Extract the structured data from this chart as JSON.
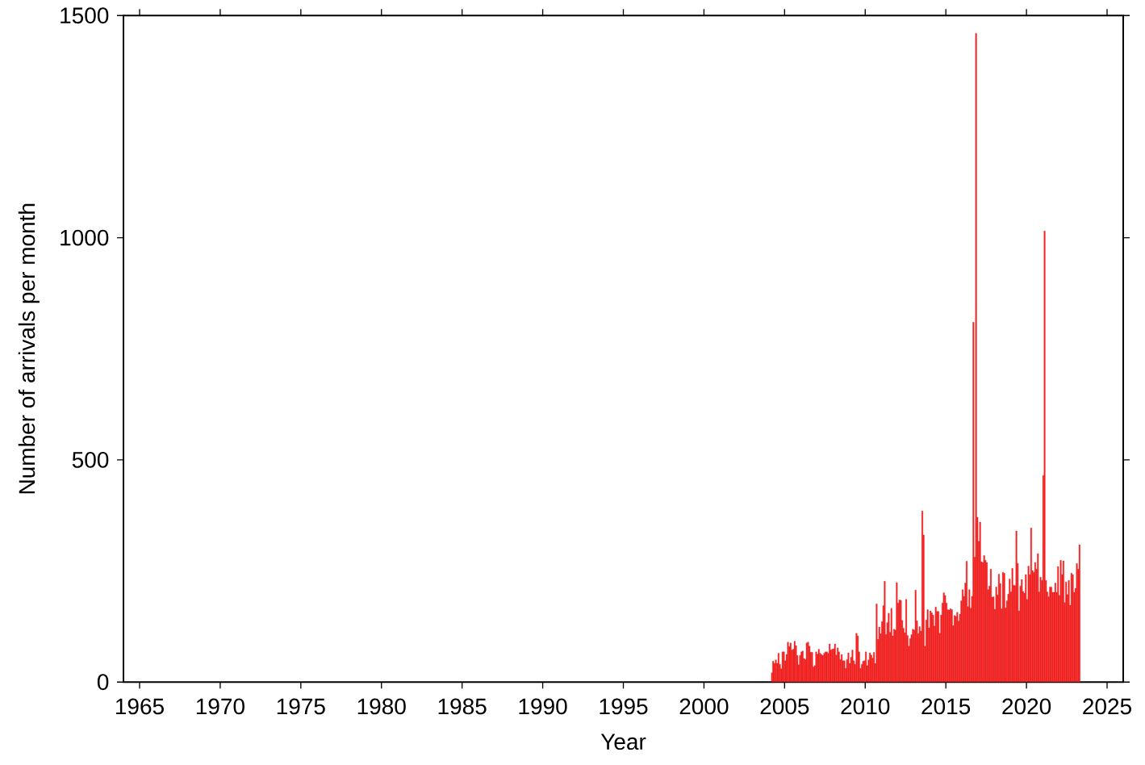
{
  "chart_data": {
    "type": "bar",
    "xlabel": "Year",
    "ylabel": "Number of arrivals per month",
    "color": "#ff2020",
    "xlim": [
      "1964",
      "2026"
    ],
    "xticks": [
      "1965",
      "1970",
      "1975",
      "1980",
      "1985",
      "1990",
      "1995",
      "2000",
      "2005",
      "2010",
      "2015",
      "2020",
      "2025"
    ],
    "ylim": [
      0,
      1500
    ],
    "yticks": [
      0,
      500,
      1000,
      1500
    ],
    "x": [
      "2004-03",
      "2004-04",
      "2004-05",
      "2004-06",
      "2004-07",
      "2004-08",
      "2004-09",
      "2004-10",
      "2004-11",
      "2004-12",
      "2005-01",
      "2005-02",
      "2005-03",
      "2005-04",
      "2005-05",
      "2005-06",
      "2005-07",
      "2005-08",
      "2005-09",
      "2005-10",
      "2005-11",
      "2005-12",
      "2006-01",
      "2006-02",
      "2006-03",
      "2006-04",
      "2006-05",
      "2006-06",
      "2006-07",
      "2006-08",
      "2006-09",
      "2006-10",
      "2006-11",
      "2006-12",
      "2007-01",
      "2007-02",
      "2007-03",
      "2007-04",
      "2007-05",
      "2007-06",
      "2007-07",
      "2007-08",
      "2007-09",
      "2007-10",
      "2007-11",
      "2007-12",
      "2008-01",
      "2008-02",
      "2008-03",
      "2008-04",
      "2008-05",
      "2008-06",
      "2008-07",
      "2008-08",
      "2008-09",
      "2008-10",
      "2008-11",
      "2008-12",
      "2009-01",
      "2009-02",
      "2009-03",
      "2009-04",
      "2009-05",
      "2009-06",
      "2009-07",
      "2009-08",
      "2009-09",
      "2009-10",
      "2009-11",
      "2009-12",
      "2010-01",
      "2010-02",
      "2010-03",
      "2010-04",
      "2010-05",
      "2010-06",
      "2010-07",
      "2010-08",
      "2010-09",
      "2010-10",
      "2010-11",
      "2010-12",
      "2011-01",
      "2011-02",
      "2011-03",
      "2011-04",
      "2011-05",
      "2011-06",
      "2011-07",
      "2011-08",
      "2011-09",
      "2011-10",
      "2011-11",
      "2011-12",
      "2012-01",
      "2012-02",
      "2012-03",
      "2012-04",
      "2012-05",
      "2012-06",
      "2012-07",
      "2012-08",
      "2012-09",
      "2012-10",
      "2012-11",
      "2012-12",
      "2013-01",
      "2013-02",
      "2013-03",
      "2013-04",
      "2013-05",
      "2013-06",
      "2013-07",
      "2013-08",
      "2013-09",
      "2013-10",
      "2013-11",
      "2013-12",
      "2014-01",
      "2014-02",
      "2014-03",
      "2014-04",
      "2014-05",
      "2014-06",
      "2014-07",
      "2014-08",
      "2014-09",
      "2014-10",
      "2014-11",
      "2014-12",
      "2015-01",
      "2015-02",
      "2015-03",
      "2015-04",
      "2015-05",
      "2015-06",
      "2015-07",
      "2015-08",
      "2015-09",
      "2015-10",
      "2015-11",
      "2015-12",
      "2016-01",
      "2016-02",
      "2016-03",
      "2016-04",
      "2016-05",
      "2016-06",
      "2016-07",
      "2016-08",
      "2016-09",
      "2016-10",
      "2016-11",
      "2016-12",
      "2017-01",
      "2017-02",
      "2017-03",
      "2017-04",
      "2017-05",
      "2017-06",
      "2017-07",
      "2017-08",
      "2017-09",
      "2017-10",
      "2017-11",
      "2017-12",
      "2018-01",
      "2018-02",
      "2018-03",
      "2018-04",
      "2018-05",
      "2018-06",
      "2018-07",
      "2018-08",
      "2018-09",
      "2018-10",
      "2018-11",
      "2018-12",
      "2019-01",
      "2019-02",
      "2019-03",
      "2019-04",
      "2019-05",
      "2019-06",
      "2019-07",
      "2019-08",
      "2019-09",
      "2019-10",
      "2019-11",
      "2019-12",
      "2020-01",
      "2020-02",
      "2020-03",
      "2020-04",
      "2020-05",
      "2020-06",
      "2020-07",
      "2020-08",
      "2020-09",
      "2020-10",
      "2020-11",
      "2020-12",
      "2021-01",
      "2021-02",
      "2021-03",
      "2021-04",
      "2021-05",
      "2021-06",
      "2021-07",
      "2021-08",
      "2021-09",
      "2021-10",
      "2021-11",
      "2021-12",
      "2022-01",
      "2022-02",
      "2022-03",
      "2022-04",
      "2022-05",
      "2022-06",
      "2022-07",
      "2022-08",
      "2022-09",
      "2022-10",
      "2022-11",
      "2022-12",
      "2023-01",
      "2023-02",
      "2023-03",
      "2023-04"
    ],
    "values": [
      21,
      47,
      42,
      50,
      42,
      65,
      40,
      30,
      68,
      68,
      48,
      62,
      90,
      80,
      88,
      72,
      74,
      92,
      82,
      60,
      39,
      60,
      68,
      70,
      53,
      51,
      88,
      90,
      81,
      67,
      67,
      34,
      37,
      68,
      63,
      74,
      65,
      62,
      60,
      65,
      68,
      68,
      65,
      86,
      72,
      74,
      75,
      86,
      61,
      77,
      68,
      51,
      62,
      48,
      48,
      31,
      51,
      66,
      42,
      56,
      72,
      48,
      40,
      110,
      104,
      68,
      31,
      40,
      47,
      48,
      68,
      37,
      50,
      66,
      61,
      54,
      67,
      42,
      176,
      96,
      124,
      109,
      136,
      172,
      227,
      107,
      134,
      155,
      112,
      166,
      104,
      119,
      117,
      224,
      178,
      185,
      184,
      139,
      121,
      111,
      186,
      105,
      81,
      98,
      107,
      119,
      117,
      207,
      138,
      109,
      125,
      115,
      385,
      331,
      81,
      140,
      163,
      122,
      160,
      156,
      151,
      126,
      169,
      159,
      159,
      110,
      151,
      178,
      201,
      195,
      178,
      163,
      162,
      165,
      163,
      127,
      150,
      148,
      157,
      137,
      153,
      183,
      208,
      193,
      223,
      272,
      170,
      208,
      166,
      193,
      810,
      281,
      1460,
      371,
      317,
      360,
      271,
      269,
      285,
      274,
      269,
      208,
      216,
      254,
      191,
      192,
      164,
      214,
      196,
      243,
      222,
      165,
      247,
      245,
      167,
      183,
      198,
      232,
      203,
      256,
      218,
      217,
      340,
      267,
      160,
      216,
      231,
      204,
      200,
      242,
      186,
      261,
      242,
      347,
      251,
      247,
      269,
      254,
      289,
      203,
      236,
      229,
      465,
      1015,
      229,
      203,
      192,
      214,
      214,
      202,
      202,
      223,
      202,
      260,
      195,
      274,
      242,
      273,
      179,
      225,
      197,
      229,
      173,
      245,
      242,
      202,
      211,
      267,
      254,
      309
    ]
  }
}
